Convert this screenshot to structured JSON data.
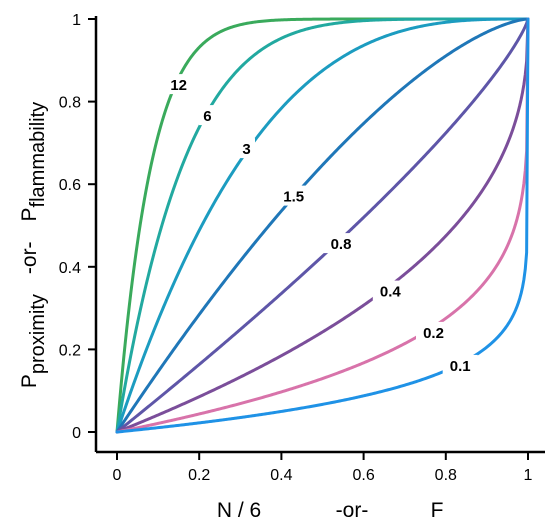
{
  "chart_data": {
    "type": "line",
    "xlabel": {
      "main": "N / 6",
      "sep": "-or-",
      "alt": "F"
    },
    "ylabel": {
      "p1": "P",
      "s1": "proximity",
      "sep": "-or-",
      "p2": "P",
      "s2": "flammability"
    },
    "xlim": [
      0,
      1
    ],
    "ylim": [
      0,
      1
    ],
    "x_ticks": [
      {
        "value": 0,
        "label": "0"
      },
      {
        "value": 0.2,
        "label": "0.2"
      },
      {
        "value": 0.4,
        "label": "0.4"
      },
      {
        "value": 0.6,
        "label": "0.6"
      },
      {
        "value": 0.8,
        "label": "0.8"
      },
      {
        "value": 1,
        "label": "1"
      }
    ],
    "y_ticks": [
      {
        "value": 0,
        "label": "0"
      },
      {
        "value": 0.2,
        "label": "0.2"
      },
      {
        "value": 0.4,
        "label": "0.4"
      },
      {
        "value": 0.6,
        "label": "0.6"
      },
      {
        "value": 0.8,
        "label": "0.8"
      },
      {
        "value": 1,
        "label": "1"
      }
    ],
    "grid": false,
    "series": [
      {
        "name": "12",
        "k": 12,
        "color": "#3aaa5c",
        "label_at": [
          0.15,
          0.84
        ]
      },
      {
        "name": "6",
        "k": 6,
        "color": "#22a9a0",
        "label_at": [
          0.22,
          0.765
        ]
      },
      {
        "name": "3",
        "k": 3,
        "color": "#1c9cc0",
        "label_at": [
          0.315,
          0.685
        ]
      },
      {
        "name": "1.5",
        "k": 1.5,
        "color": "#1f77b8",
        "label_at": [
          0.43,
          0.57
        ]
      },
      {
        "name": "0.8",
        "k": 0.8,
        "color": "#5e56a8",
        "label_at": [
          0.545,
          0.455
        ]
      },
      {
        "name": "0.4",
        "k": 0.4,
        "color": "#7b4e9a",
        "label_at": [
          0.665,
          0.34
        ]
      },
      {
        "name": "0.2",
        "k": 0.2,
        "color": "#d873aa",
        "label_at": [
          0.77,
          0.24
        ]
      },
      {
        "name": "0.1",
        "k": 0.1,
        "color": "#1f92e6",
        "label_at": [
          0.835,
          0.16
        ]
      }
    ]
  }
}
